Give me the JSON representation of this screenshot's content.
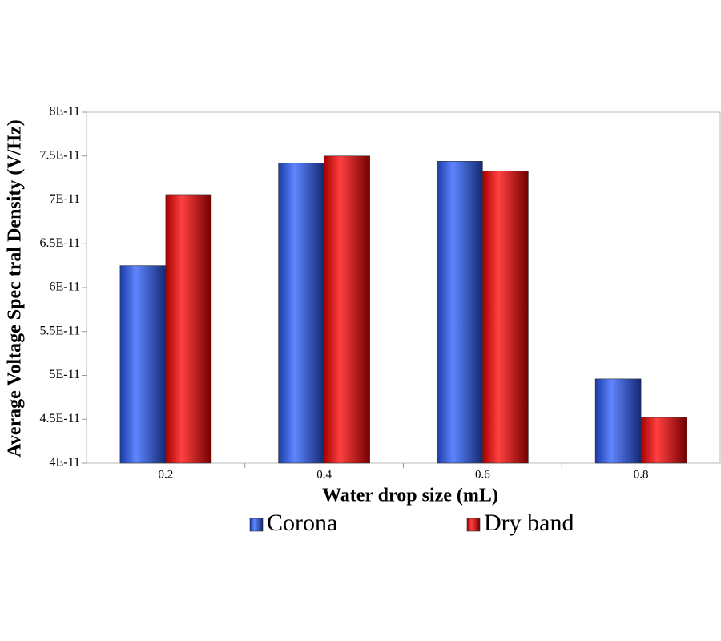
{
  "chart_data": {
    "type": "bar",
    "x_label": "Water drop size (mL)",
    "y_label": "Average Voltage Spec tral Density (V/Hz)",
    "categories": [
      "0.2",
      "0.4",
      "0.6",
      "0.8"
    ],
    "series": [
      {
        "name": "Corona",
        "color": "#2a5cff",
        "values": [
          6.25e-11,
          7.42e-11,
          7.44e-11,
          4.96e-11
        ]
      },
      {
        "name": "Dry band",
        "color": "#ff0000",
        "values": [
          7.06e-11,
          7.5e-11,
          7.33e-11,
          4.52e-11
        ]
      }
    ],
    "ylim": [
      4e-11,
      8e-11
    ],
    "yticks": [
      {
        "value": 4e-11,
        "label": "4E-11"
      },
      {
        "value": 4.5e-11,
        "label": "4.5E-11"
      },
      {
        "value": 5e-11,
        "label": "5E-11"
      },
      {
        "value": 5.5e-11,
        "label": "5.5E-11"
      },
      {
        "value": 6e-11,
        "label": "6E-11"
      },
      {
        "value": 6.5e-11,
        "label": "6.5E-11"
      },
      {
        "value": 7e-11,
        "label": "7E-11"
      },
      {
        "value": 7.5e-11,
        "label": "7.5E-11"
      },
      {
        "value": 8e-11,
        "label": "8E-11"
      }
    ],
    "grid": false,
    "legend": "bottom"
  }
}
